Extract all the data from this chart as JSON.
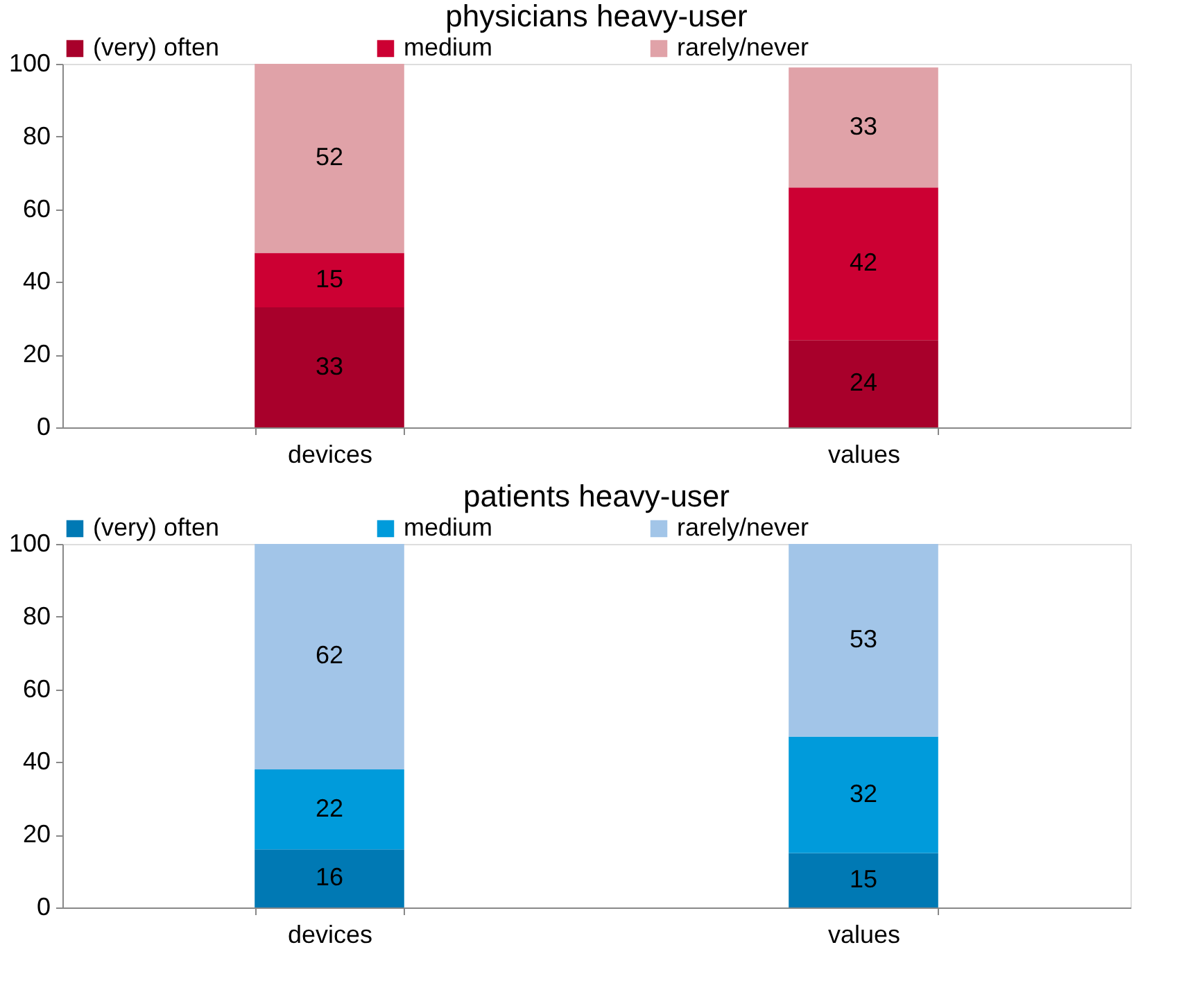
{
  "chart_data": [
    {
      "type": "bar",
      "title": "physicians heavy-user",
      "categories": [
        "devices",
        "values"
      ],
      "stacked": true,
      "data_labels": true,
      "legend": "top",
      "grid": false,
      "ylim": [
        0,
        100
      ],
      "yticks": [
        0,
        20,
        40,
        60,
        80,
        100
      ],
      "series": [
        {
          "name": "(very) often",
          "color": "#a8002b",
          "values": [
            33,
            24
          ]
        },
        {
          "name": "medium",
          "color": "#cc0033",
          "values": [
            15,
            42
          ]
        },
        {
          "name": "rarely/never",
          "color": "#e0a2a8",
          "values": [
            52,
            33
          ]
        }
      ]
    },
    {
      "type": "bar",
      "title": "patients heavy-user",
      "categories": [
        "devices",
        "values"
      ],
      "stacked": true,
      "data_labels": true,
      "legend": "top",
      "grid": false,
      "ylim": [
        0,
        100
      ],
      "yticks": [
        0,
        20,
        40,
        60,
        80,
        100
      ],
      "series": [
        {
          "name": "(very) often",
          "color": "#0079b4",
          "values": [
            16,
            15
          ]
        },
        {
          "name": "medium",
          "color": "#009bdb",
          "values": [
            22,
            32
          ]
        },
        {
          "name": "rarely/never",
          "color": "#a2c5e8",
          "values": [
            62,
            53
          ]
        }
      ]
    }
  ]
}
